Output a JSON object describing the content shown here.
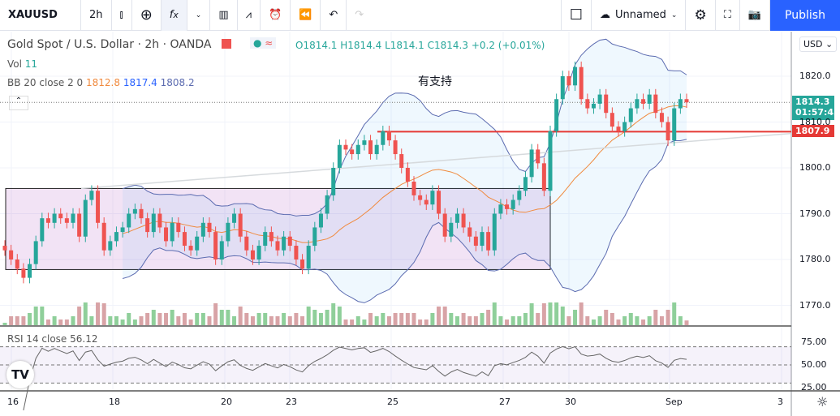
{
  "toolbar": {
    "symbol": "XAUUSD",
    "interval": "2h",
    "layout_name": "Unnamed",
    "publish": "Publish",
    "icons": [
      "candles-icon",
      "add-indicator-icon",
      "fx-icon",
      "chevron-down-icon",
      "bar-chart-icon",
      "compare-icon",
      "alert-icon",
      "replay-icon",
      "undo-icon",
      "redo-icon",
      "square-icon",
      "cloud-icon",
      "chevron-down-icon",
      "gear-icon",
      "fullscreen-icon",
      "camera-icon"
    ]
  },
  "legend": {
    "title": "Gold Spot / U.S. Dollar · 2h · OANDA",
    "o": "O1814.1",
    "h": "H1814.4",
    "l": "L1814.1",
    "c": "C1814.3",
    "chg": "+0.2 (+0.01%)",
    "vol_label": "Vol",
    "vol_value": "11",
    "bb_label": "BB 20 close 2 0",
    "bb_mid": "1812.8",
    "bb_up": "1817.4",
    "bb_low": "1808.2"
  },
  "annotation": "有支持",
  "price_axis": {
    "currency": "USD",
    "ticks": [
      "1820.0",
      "1810.0",
      "1800.0",
      "1790.0",
      "1780.0",
      "1770.0"
    ],
    "last_price": "1814.3",
    "countdown": "01:57:43",
    "line_price": "1807.9"
  },
  "rsi": {
    "label": "RSI 14 close",
    "value": "56.12",
    "ticks": [
      "75.00",
      "50.00",
      "25.00"
    ]
  },
  "time_axis": [
    "16",
    "18",
    "20",
    "23",
    "25",
    "27",
    "30",
    "Sep",
    "3"
  ],
  "colors": {
    "up": "#26a69a",
    "down": "#ef5350",
    "bb": "#5b6bb0",
    "basis": "#f08a3e",
    "box": "#9c27b0",
    "line": "#e53935",
    "accent": "#2962ff"
  },
  "chart_data": {
    "type": "candlestick",
    "ylim": [
      1765,
      1830
    ],
    "closes": [
      1782,
      1780,
      1778,
      1776,
      1779,
      1784,
      1789,
      1788,
      1790,
      1789,
      1788,
      1790,
      1785,
      1793,
      1795,
      1788,
      1782,
      1784,
      1786,
      1787,
      1790,
      1791,
      1789,
      1786,
      1790,
      1787,
      1784,
      1788,
      1786,
      1783,
      1782,
      1785,
      1788,
      1786,
      1780,
      1784,
      1788,
      1790,
      1785,
      1782,
      1780,
      1783,
      1786,
      1784,
      1782,
      1785,
      1783,
      1780,
      1778,
      1783,
      1787,
      1790,
      1794,
      1800,
      1805,
      1804,
      1803,
      1805,
      1806,
      1803,
      1805,
      1808,
      1806,
      1803,
      1800,
      1797,
      1794,
      1793,
      1792,
      1795,
      1790,
      1785,
      1788,
      1790,
      1787,
      1785,
      1783,
      1786,
      1782,
      1790,
      1792,
      1791,
      1793,
      1795,
      1798,
      1804,
      1801,
      1795,
      1808,
      1815,
      1820,
      1818,
      1822,
      1815,
      1813,
      1814,
      1816,
      1812,
      1809,
      1808,
      1810,
      1813,
      1815,
      1814,
      1816,
      1812,
      1810,
      1806,
      1813,
      1815,
      1814.3
    ],
    "support_box": [
      1777.8,
      1795.5
    ],
    "horizontal_line": 1807.9,
    "trendline": [
      1795.5,
      1807.5
    ]
  }
}
